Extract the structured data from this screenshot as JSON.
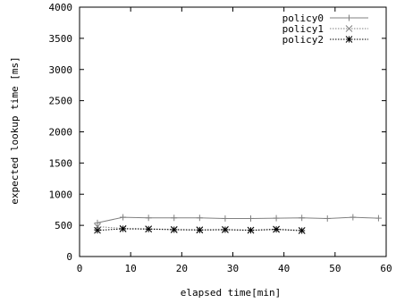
{
  "chart_data": {
    "type": "line",
    "title": "",
    "xlabel": "elapsed time[min]",
    "ylabel": "expected lookup time [ms]",
    "xlim": [
      0,
      60
    ],
    "ylim": [
      0,
      4000
    ],
    "x_ticks": [
      0,
      10,
      20,
      30,
      40,
      50,
      60
    ],
    "y_ticks": [
      0,
      500,
      1000,
      1500,
      2000,
      2500,
      3000,
      3500,
      4000
    ],
    "grid": false,
    "legend_position": "top-right",
    "series": [
      {
        "name": "policy0",
        "marker": "plus",
        "line_style": "solid",
        "color": "#808080",
        "x": [
          3.5,
          8.5,
          13.5,
          18.5,
          23.5,
          28.5,
          33.5,
          38.5,
          43.5,
          48.5,
          53.5,
          58.5
        ],
        "y": [
          540,
          630,
          620,
          620,
          620,
          610,
          610,
          615,
          620,
          610,
          630,
          615
        ]
      },
      {
        "name": "policy1",
        "marker": "x",
        "line_style": "dotted",
        "color": "#808080",
        "x": [
          3.5,
          8.5,
          13.5,
          18.5,
          23.5,
          28.5,
          33.5,
          38.5,
          43.5
        ],
        "y": [
          480,
          450,
          445,
          435,
          430,
          435,
          425,
          440,
          420
        ]
      },
      {
        "name": "policy2",
        "marker": "star",
        "line_style": "dotted",
        "color": "#000000",
        "x": [
          3.5,
          8.5,
          13.5,
          18.5,
          23.5,
          28.5,
          33.5,
          38.5,
          43.5
        ],
        "y": [
          420,
          445,
          440,
          430,
          425,
          430,
          420,
          435,
          415
        ]
      }
    ]
  }
}
